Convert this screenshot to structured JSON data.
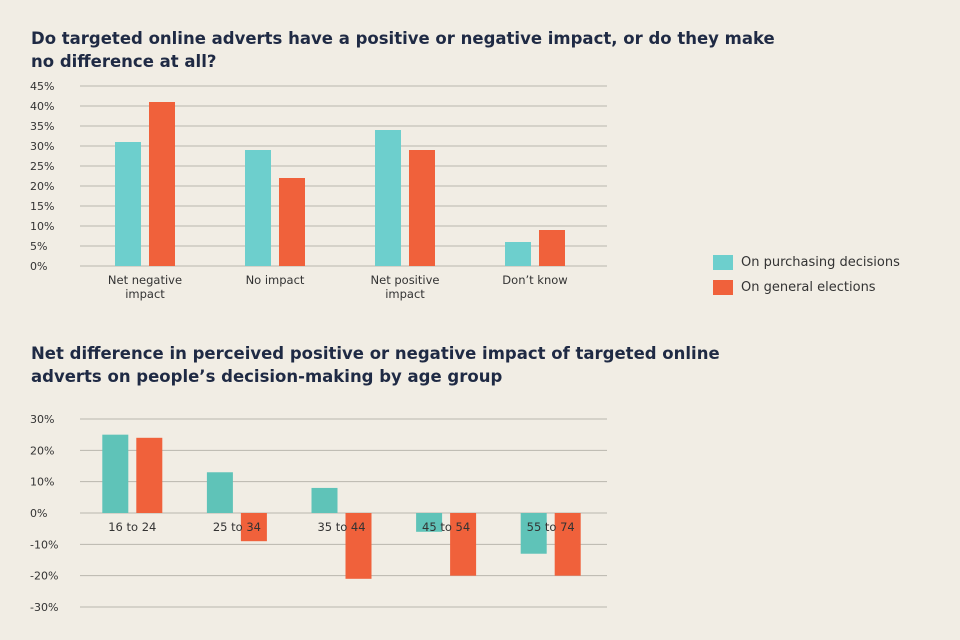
{
  "colors": {
    "purchasing": "#6dcfcd",
    "elections": "#f0613b",
    "purchasing_alt": "#5fc3b8",
    "grid": "#b9b6ae",
    "text": "#333333"
  },
  "legend": [
    {
      "label": "On purchasing decisions",
      "color": "#6dcfcd"
    },
    {
      "label": "On general elections",
      "color": "#f0613b"
    }
  ],
  "chart_data": [
    {
      "type": "bar",
      "title": "Do targeted online adverts have a positive or negative impact, or do they make no difference at all?",
      "categories": [
        [
          "Net negative",
          "impact"
        ],
        [
          "No impact"
        ],
        [
          "Net positive",
          "impact"
        ],
        [
          "Don’t know"
        ]
      ],
      "series": [
        {
          "name": "On purchasing decisions",
          "values": [
            31,
            29,
            34,
            6
          ]
        },
        {
          "name": "On general elections",
          "values": [
            41,
            22,
            29,
            9
          ]
        }
      ],
      "ylim": [
        0,
        45
      ],
      "yticks": [
        "0%",
        "5%",
        "10%",
        "15%",
        "20%",
        "25%",
        "30%",
        "35%",
        "40%",
        "45%"
      ],
      "grid": true,
      "legend": "right"
    },
    {
      "type": "bar",
      "title": "Net difference in perceived positive or negative impact of targeted online adverts on people’s decision-making by age group",
      "categories": [
        [
          "16 to 24"
        ],
        [
          "25 to 34"
        ],
        [
          "35 to 44"
        ],
        [
          "45 to 54"
        ],
        [
          "55 to 74"
        ]
      ],
      "series": [
        {
          "name": "On purchasing decisions",
          "values": [
            25,
            13,
            8,
            -6,
            -13
          ]
        },
        {
          "name": "On general elections",
          "values": [
            24,
            -9,
            -21,
            -20,
            -20
          ]
        }
      ],
      "ylim": [
        -30,
        30
      ],
      "yticks": [
        "-30%",
        "-20%",
        "-10%",
        "0%",
        "10%",
        "20%",
        "30%"
      ],
      "grid": true
    }
  ]
}
